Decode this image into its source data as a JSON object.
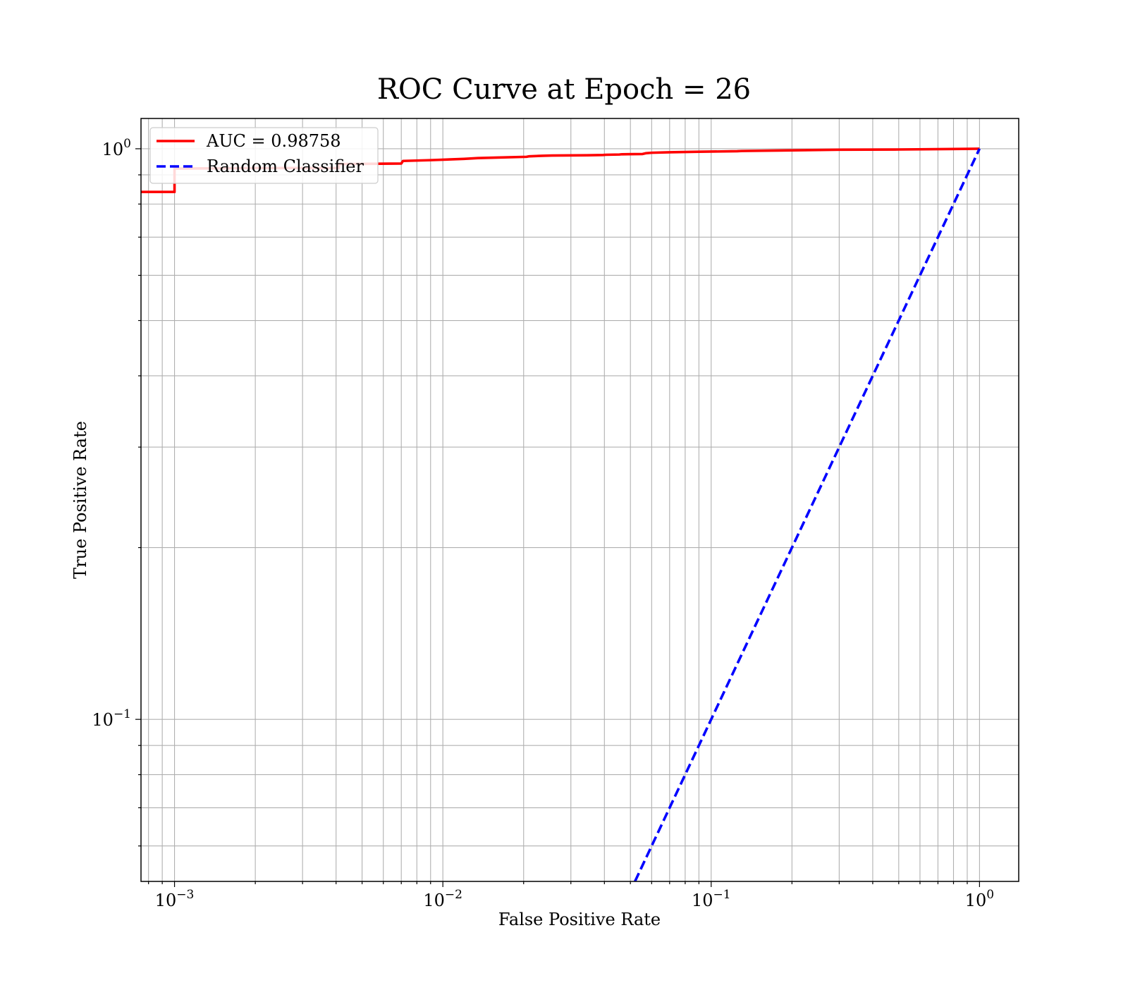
{
  "chart_data": {
    "type": "line",
    "title": "ROC Curve at Epoch = 26",
    "xlabel": "False Positive Rate",
    "ylabel": "True Positive Rate",
    "xscale": "log",
    "yscale": "log",
    "xlim": [
      0.00075,
      1.4
    ],
    "ylim": [
      0.052,
      1.13
    ],
    "grid": true,
    "grid_which": "both",
    "legend_position": "upper-left",
    "x_major_ticks": [
      {
        "value": 0.001,
        "base": "10",
        "exp": "−3"
      },
      {
        "value": 0.01,
        "base": "10",
        "exp": "−2"
      },
      {
        "value": 0.1,
        "base": "10",
        "exp": "−1"
      },
      {
        "value": 1,
        "base": "10",
        "exp": "0"
      }
    ],
    "y_major_ticks": [
      {
        "value": 0.1,
        "base": "10",
        "exp": "−1"
      },
      {
        "value": 1,
        "base": "10",
        "exp": "0"
      }
    ],
    "series": [
      {
        "name": "AUC = 0.98758",
        "color": "#ff0000",
        "style": "solid",
        "x": [
          0.00075,
          0.001,
          0.001,
          0.00205,
          0.0041,
          0.0041,
          0.007,
          0.0071,
          0.009,
          0.012,
          0.0135,
          0.016,
          0.0205,
          0.021,
          0.0235,
          0.0255,
          0.0345,
          0.0395,
          0.0405,
          0.0455,
          0.0465,
          0.0555,
          0.057,
          0.06,
          0.07,
          0.09,
          0.125,
          0.13,
          0.18,
          0.3,
          0.5,
          0.8,
          1.0
        ],
        "y": [
          0.84,
          0.84,
          0.923,
          0.925,
          0.925,
          0.94,
          0.942,
          0.952,
          0.955,
          0.96,
          0.963,
          0.965,
          0.968,
          0.97,
          0.972,
          0.973,
          0.974,
          0.975,
          0.976,
          0.977,
          0.978,
          0.979,
          0.982,
          0.984,
          0.986,
          0.988,
          0.99,
          0.991,
          0.993,
          0.996,
          0.997,
          0.999,
          1.0
        ]
      },
      {
        "name": "Random Classifier",
        "color": "#0000ff",
        "style": "dashed",
        "x": [
          0.052,
          1.0
        ],
        "y": [
          0.052,
          1.0
        ]
      }
    ]
  }
}
